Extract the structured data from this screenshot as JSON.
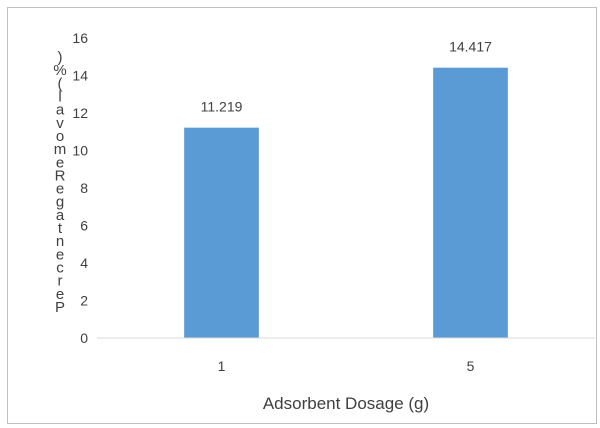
{
  "chart_data": {
    "type": "bar",
    "title": "",
    "xlabel": "Adsorbent Dosage (g)",
    "ylabel": "Percentage Removal (%)",
    "categories": [
      "1",
      "5"
    ],
    "values": [
      11.219,
      14.417
    ],
    "data_labels": [
      "11.219",
      "14.417"
    ],
    "ylim": [
      0,
      16
    ],
    "yticks": [
      0,
      2,
      4,
      6,
      8,
      10,
      12,
      14,
      16
    ],
    "grid": false,
    "legend": "none",
    "bar_color": "#5b9bd5",
    "axis_color": "#d9d9d9"
  }
}
